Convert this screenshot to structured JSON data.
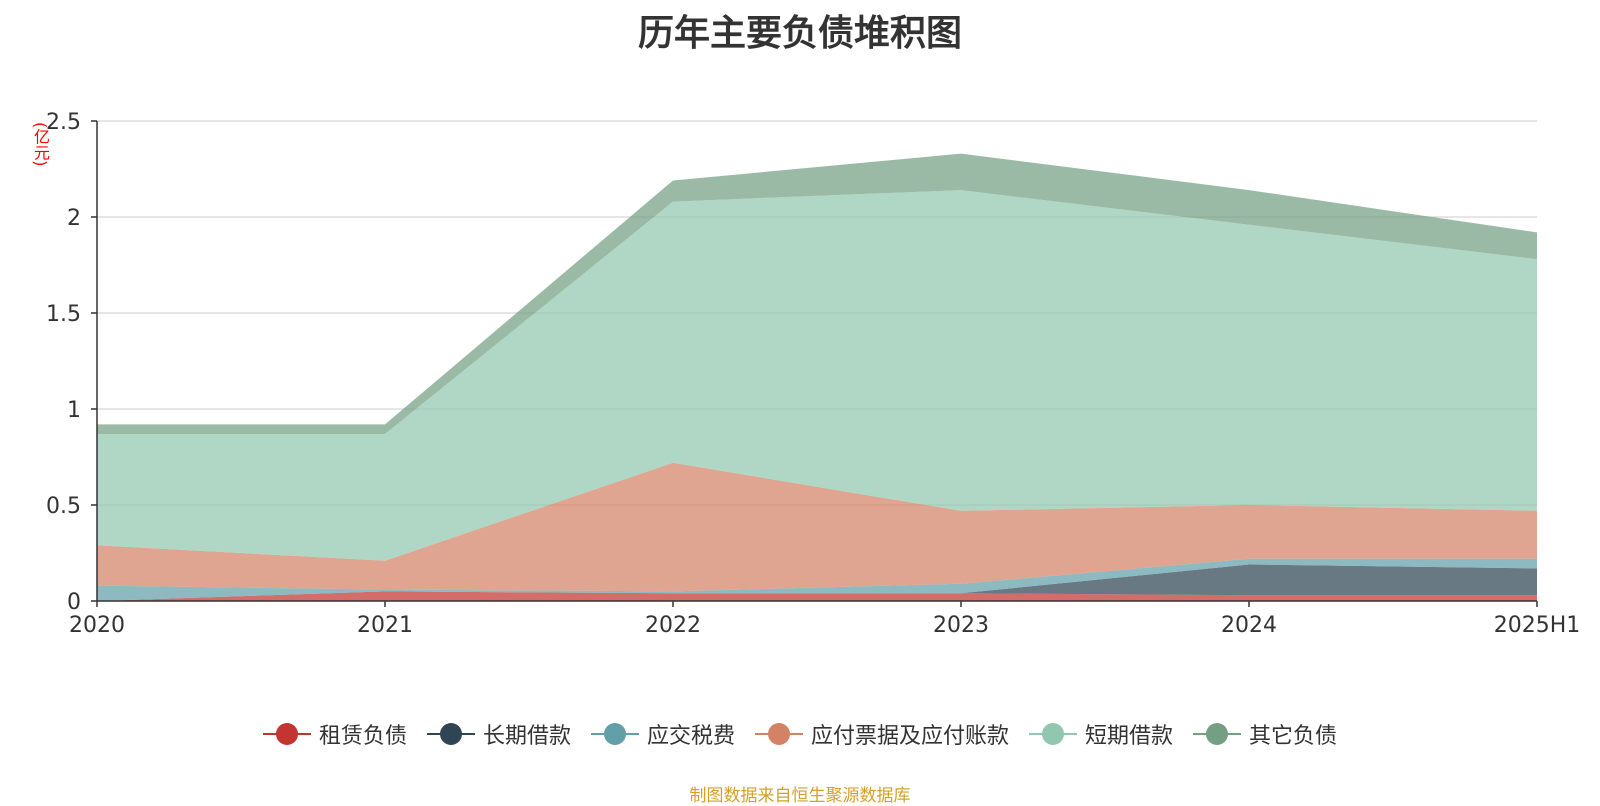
{
  "chart_data": {
    "type": "area",
    "stacked": true,
    "title": "历年主要负债堆积图",
    "unit_label": "(亿元)",
    "categories": [
      "2020",
      "2021",
      "2022",
      "2023",
      "2024",
      "2025H1"
    ],
    "ylim": [
      0,
      2.5
    ],
    "yticks": [
      "0",
      "0.5",
      "1",
      "1.5",
      "2",
      "2.5"
    ],
    "grid": true,
    "legend_position": "bottom",
    "series": [
      {
        "name": "租赁负债",
        "color": "#c23531",
        "values": [
          0.0,
          0.05,
          0.04,
          0.04,
          0.03,
          0.03
        ]
      },
      {
        "name": "长期借款",
        "color": "#2f4554",
        "values": [
          0.0,
          0.0,
          0.0,
          0.0,
          0.16,
          0.14
        ]
      },
      {
        "name": "应交税费",
        "color": "#61a0a8",
        "values": [
          0.08,
          0.01,
          0.01,
          0.05,
          0.03,
          0.05
        ]
      },
      {
        "name": "应付票据及应付账款",
        "color": "#d48265",
        "values": [
          0.21,
          0.15,
          0.67,
          0.38,
          0.28,
          0.25
        ]
      },
      {
        "name": "短期借款",
        "color": "#91c7ae",
        "values": [
          0.58,
          0.66,
          1.36,
          1.67,
          1.46,
          1.31
        ]
      },
      {
        "name": "其它负债",
        "color": "#749f83",
        "values": [
          0.05,
          0.05,
          0.11,
          0.19,
          0.18,
          0.14
        ]
      }
    ]
  },
  "source_note": "制图数据来自恒生聚源数据库"
}
